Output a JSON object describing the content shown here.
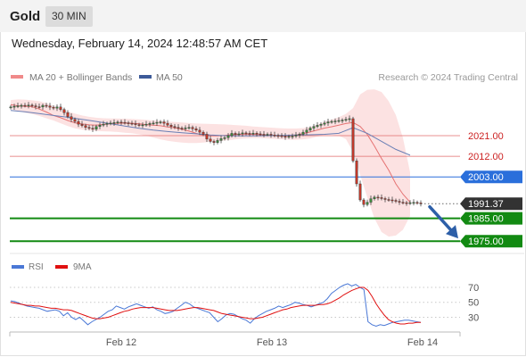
{
  "header": {
    "symbol": "Gold",
    "timeframe": "30 MIN",
    "datetime": "Wednesday, February 14, 2024 12:48:57 AM CET"
  },
  "legend": [
    {
      "name": "MA 20 + Bollinger Bands",
      "color": "#f08a8a"
    },
    {
      "name": "MA 50",
      "color": "#3d5a99"
    }
  ],
  "credit": "Research © 2024 Trading Central",
  "chart_data": [
    {
      "type": "candlestick",
      "title": "",
      "ylim": [
        1972,
        2042
      ],
      "x_ticks": [
        "Feb 12",
        "Feb 13",
        "Feb 14"
      ],
      "levels": [
        {
          "label": "2021.00",
          "value": 2021.0,
          "kind": "resistance",
          "color": "#cc2222"
        },
        {
          "label": "2012.00",
          "value": 2012.0,
          "kind": "resistance",
          "color": "#cc2222"
        },
        {
          "label": "2003.00",
          "value": 2003.0,
          "kind": "pivot",
          "color": "#2a6fdb"
        },
        {
          "label": "1991.37",
          "value": 1991.37,
          "kind": "last-price",
          "color": "#333333"
        },
        {
          "label": "1985.00",
          "value": 1985.0,
          "kind": "support",
          "color": "#128a12"
        },
        {
          "label": "1975.00",
          "value": 1975.0,
          "kind": "support",
          "color": "#128a12"
        }
      ],
      "close_series": [
        2033.5,
        2033.8,
        2034.0,
        2034.2,
        2034.1,
        2034.3,
        2034.0,
        2033.6,
        2033.5,
        2034.2,
        2033.9,
        2033.4,
        2033.0,
        2033.5,
        2032.4,
        2031.0,
        2029.3,
        2028.1,
        2027.2,
        2026.0,
        2025.4,
        2024.6,
        2024.2,
        2023.8,
        2025.0,
        2025.6,
        2026.0,
        2026.3,
        2026.5,
        2026.7,
        2026.9,
        2026.8,
        2026.6,
        2026.4,
        2026.2,
        2025.8,
        2025.5,
        2025.7,
        2026.0,
        2026.3,
        2026.5,
        2026.8,
        2027.0,
        2026.4,
        2025.6,
        2025.0,
        2024.6,
        2024.3,
        2024.1,
        2024.4,
        2024.6,
        2024.0,
        2023.4,
        2022.5,
        2021.6,
        2019.5,
        2018.5,
        2018.0,
        2018.9,
        2019.7,
        2020.1,
        2021.0,
        2022.0,
        2021.5,
        2021.8,
        2022.2,
        2022.0,
        2021.9,
        2022.1,
        2021.8,
        2021.6,
        2021.5,
        2021.6,
        2021.3,
        2021.1,
        2021.0,
        2020.7,
        2020.4,
        2020.7,
        2020.8,
        2021.2,
        2021.6,
        2022.5,
        2023.4,
        2024.3,
        2025.0,
        2025.5,
        2026.0,
        2026.5,
        2027.0,
        2027.2,
        2027.4,
        2027.6,
        2027.8,
        2028.1,
        2028.4,
        2010.0,
        2000.0,
        1993.0,
        1991.0,
        1992.0,
        1993.5,
        1994.2,
        1994.0,
        1993.6,
        1993.2,
        1993.0,
        1992.8,
        1992.4,
        1992.0,
        1991.8,
        1991.6,
        1991.8,
        1991.9,
        1991.7,
        1991.37
      ],
      "ma20": [
        2034.5,
        2034.0,
        2033.8,
        2033.6,
        2032.6,
        2031.3,
        2029.8,
        2028.8,
        2027.6,
        2026.6,
        2026.1,
        2025.7,
        2025.6,
        2025.9,
        2026.2,
        2026.4,
        2026.5,
        2026.4,
        2026.2,
        2025.8,
        2025.6,
        2025.3,
        2024.8,
        2024.4,
        2023.8,
        2023.0,
        2022.0,
        2021.2,
        2020.9,
        2020.9,
        2021.1,
        2021.4,
        2021.6,
        2021.7,
        2021.6,
        2021.4,
        2021.2,
        2021.0,
        2020.9,
        2021.0,
        2021.3,
        2021.9,
        2022.6,
        2023.5,
        2024.3,
        2024.9,
        2025.6,
        2026.3,
        2026.7,
        2025.0,
        2021.5,
        2016.5,
        2011.0,
        2006.0,
        2000.0,
        1995.5,
        1992.0
      ],
      "ma20_xstep": 2,
      "bb_upper": [
        2036.5,
        2036.8,
        2036.7,
        2036.4,
        2036.0,
        2035.2,
        2034.0,
        2032.8,
        2031.6,
        2030.6,
        2029.8,
        2029.2,
        2028.8,
        2028.6,
        2028.5,
        2028.5,
        2028.4,
        2028.3,
        2028.1,
        2027.9,
        2027.6,
        2027.4,
        2027.1,
        2026.9,
        2026.7,
        2026.5,
        2026.3,
        2026.2,
        2026.1,
        2026.0,
        2025.9,
        2025.7,
        2025.5,
        2025.3,
        2025.0,
        2024.8,
        2024.6,
        2024.4,
        2024.2,
        2024.1,
        2024.1,
        2024.3,
        2024.8,
        2025.8,
        2027.0,
        2028.0,
        2029.0,
        2030.5,
        2033.0,
        2039.0,
        2041.0,
        2041.2,
        2040.0,
        2036.0,
        2030.0,
        2020.0,
        2005.0
      ],
      "bb_lower": [
        2032.5,
        2031.8,
        2031.0,
        2030.4,
        2029.6,
        2028.6,
        2027.6,
        2026.4,
        2025.2,
        2024.2,
        2023.6,
        2023.2,
        2023.0,
        2022.9,
        2022.8,
        2022.6,
        2022.3,
        2022.0,
        2021.6,
        2021.0,
        2020.2,
        2019.4,
        2018.8,
        2018.3,
        2018.0,
        2017.8,
        2017.8,
        2018.0,
        2018.3,
        2018.6,
        2018.9,
        2019.2,
        2019.6,
        2019.8,
        2019.9,
        2019.9,
        2019.8,
        2019.6,
        2019.4,
        2019.3,
        2019.2,
        2019.4,
        2019.8,
        2020.6,
        2021.2,
        2021.4,
        2021.0,
        2019.5,
        2014.0,
        2004.0,
        1994.0,
        1985.0,
        1979.0,
        1977.0,
        1977.5,
        1980.0,
        1986.0
      ],
      "ma50": [
        2032.0,
        2031.4,
        2030.6,
        2029.8,
        2029.0,
        2028.1,
        2027.2,
        2026.2,
        2025.2,
        2024.2,
        2023.4,
        2022.8,
        2022.3,
        2021.8,
        2021.3,
        2021.0,
        2020.9,
        2020.9,
        2021.0,
        2021.1,
        2021.3,
        2021.4,
        2021.6,
        2022.0,
        2024.5,
        2022.0,
        2018.5,
        2015.0,
        2012.5
      ],
      "ma50_xstep": 4,
      "forecast": {
        "direction": "down",
        "from": 1990.0,
        "to": 1977.0
      }
    },
    {
      "type": "line",
      "title": "",
      "ylim": [
        15,
        82
      ],
      "y_ticks": [
        70,
        50,
        30
      ],
      "series": [
        {
          "name": "RSI",
          "color": "#4a78d6",
          "values": [
            52,
            51,
            49,
            47,
            45,
            44,
            43,
            42,
            40,
            38,
            39,
            40,
            38,
            32,
            36,
            30,
            27,
            30,
            25,
            20,
            24,
            27,
            30,
            34,
            38,
            40,
            45,
            43,
            41,
            44,
            46,
            48,
            46,
            44,
            42,
            44,
            40,
            38,
            35,
            36,
            38,
            42,
            46,
            50,
            48,
            44,
            42,
            40,
            38,
            36,
            30,
            24,
            28,
            33,
            35,
            34,
            31,
            28,
            26,
            22,
            28,
            32,
            35,
            38,
            40,
            42,
            45,
            43,
            45,
            47,
            50,
            49,
            47,
            46,
            44,
            46,
            48,
            50,
            55,
            62,
            66,
            70,
            73,
            75,
            72,
            74,
            70,
            67,
            24,
            20,
            18,
            20,
            19,
            21,
            23,
            24,
            25,
            26,
            26,
            25,
            24,
            23
          ]
        },
        {
          "name": "9MA",
          "color": "#e01010",
          "values": [
            50,
            49,
            48,
            47,
            46,
            46,
            45,
            45,
            44,
            43,
            42,
            42,
            41,
            40,
            40,
            39,
            37,
            35,
            33,
            31,
            29,
            28,
            28,
            29,
            30,
            32,
            34,
            36,
            38,
            39,
            41,
            42,
            43,
            43,
            43,
            43,
            42,
            41,
            40,
            39,
            39,
            39,
            40,
            41,
            42,
            43,
            43,
            42,
            41,
            40,
            39,
            37,
            35,
            34,
            33,
            32,
            31,
            30,
            29,
            28,
            28,
            29,
            30,
            32,
            34,
            36,
            38,
            40,
            41,
            43,
            44,
            45,
            46,
            46,
            46,
            46,
            47,
            47,
            48,
            50,
            53,
            56,
            60,
            63,
            66,
            68,
            70,
            70,
            66,
            58,
            48,
            40,
            33,
            27,
            24,
            22,
            21,
            21,
            22,
            22,
            23,
            23
          ]
        }
      ]
    }
  ]
}
